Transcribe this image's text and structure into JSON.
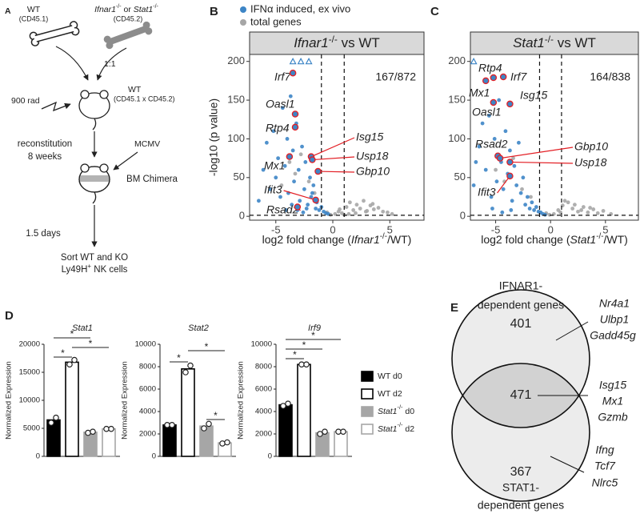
{
  "panel_a": {
    "letter": "A",
    "donor_wt": "WT",
    "donor_wt_marker": "(CD45.1)",
    "donor_ko_gene1": "Ifnar1",
    "ko_sup": "-/-",
    "or": " or ",
    "donor_ko_gene2": "Stat1",
    "donor_ko_marker": "(CD45.2)",
    "ratio": "1:1",
    "irradiation": "900 rad",
    "recipient": "WT",
    "recipient_marker": "(CD45.1 x CD45.2)",
    "reconstitution": "reconstitution",
    "weeks": "8 weeks",
    "infection": "MCMV",
    "chimera": "BM Chimera",
    "days": "1.5 days",
    "sort_1": "Sort WT and KO",
    "sort_2": "Ly49H",
    "sort_2_sup": "+",
    "sort_2_rest": " NK cells"
  },
  "chart_data": [
    {
      "type": "scatter",
      "letter": "B",
      "title": {
        "gene": "Ifnar1",
        "sup": "-/-",
        "rest": " vs WT"
      },
      "xlabel": {
        "pre": "log2 fold change (",
        "gene": "Ifnar1",
        "sup": "-/-",
        "post": "/WT)"
      },
      "ylabel": "-log10 (p value)",
      "count": "167/872",
      "highlight_color": "#e31e24",
      "xlim": [
        -7.3,
        8.0
      ],
      "ylim": [
        -5,
        209
      ],
      "xticks": [
        -5,
        0,
        5
      ],
      "yticks": [
        0,
        50,
        100,
        150,
        200
      ],
      "thresholds": {
        "x": [
          -1,
          1
        ],
        "y": [
          1.3
        ]
      },
      "series": [
        {
          "name": "IFNα induced, ex vivo",
          "color": "#3d85c6",
          "x": [
            -6.5,
            -6.1,
            -5.8,
            -5.5,
            -5.2,
            -5.0,
            -4.8,
            -4.6,
            -4.4,
            -4.2,
            -4.0,
            -3.9,
            -3.7,
            -3.5,
            -3.4,
            -3.2,
            -3.0,
            -2.9,
            -2.7,
            -2.5,
            -2.4,
            -2.2,
            -2.0,
            -1.9,
            -1.7,
            -1.5,
            -1.4,
            -1.2,
            -1.0,
            -0.8,
            -0.6,
            -0.4,
            -3.6,
            -3.1,
            -2.6,
            -2.3,
            -4.1,
            -1.8
          ],
          "y": [
            20,
            60,
            95,
            35,
            110,
            50,
            75,
            25,
            140,
            65,
            100,
            30,
            155,
            85,
            45,
            120,
            60,
            20,
            90,
            35,
            70,
            15,
            50,
            25,
            40,
            10,
            18,
            8,
            12,
            6,
            4,
            3,
            15,
            8,
            5,
            10,
            8,
            30
          ]
        },
        {
          "name": "total genes",
          "color": "#a6a6a6",
          "x": [
            -4.5,
            -3.8,
            -3.3,
            -2.8,
            -2.1,
            -1.6,
            -0.5,
            0.2,
            0.5,
            0.8,
            1.2,
            1.5,
            1.8,
            2.1,
            2.4,
            2.7,
            3.0,
            3.3,
            3.6,
            4.0,
            4.4,
            4.8,
            5.2,
            1.0,
            2.0,
            3.5,
            -0.2,
            0.6,
            1.4,
            2.9
          ],
          "y": [
            40,
            70,
            55,
            80,
            45,
            30,
            5,
            3,
            6,
            4,
            12,
            18,
            8,
            15,
            10,
            20,
            7,
            14,
            9,
            11,
            6,
            5,
            3,
            2,
            4,
            16,
            2,
            9,
            3,
            6
          ]
        }
      ],
      "capped": {
        "x": [
          -3.5,
          -2.8,
          -2.1
        ],
        "y": [
          200,
          200,
          200
        ]
      },
      "highlights": [
        {
          "label": "Irf7",
          "x": -3.5,
          "y": 185
        },
        {
          "label": "Oasl1",
          "x": -3.3,
          "y": 132
        },
        {
          "label": "Rtp4",
          "x": -3.3,
          "y": 115
        },
        {
          "label": "Mx1",
          "x": -3.8,
          "y": 77
        },
        {
          "label": "Isg15",
          "x": -1.9,
          "y": 77
        },
        {
          "label": "Usp18",
          "x": -1.8,
          "y": 73
        },
        {
          "label": "Gbp10",
          "x": -1.3,
          "y": 58
        },
        {
          "label": "Ifit3",
          "x": -1.5,
          "y": 21
        },
        {
          "label": "Rsad2",
          "x": -3.1,
          "y": 12
        }
      ]
    },
    {
      "type": "scatter",
      "letter": "C",
      "title": {
        "gene": "Stat1",
        "sup": "-/-",
        "rest": " vs WT"
      },
      "xlabel": {
        "pre": "log2 fold change (",
        "gene": "Stat1",
        "sup": "-/-",
        "post": "/WT)"
      },
      "count": "164/838",
      "highlight_color": "#e31e24",
      "xlim": [
        -7.3,
        8.0
      ],
      "ylim": [
        -5,
        209
      ],
      "xticks": [
        -5,
        0,
        5
      ],
      "yticks": [
        0,
        50,
        100,
        150,
        200
      ],
      "thresholds": {
        "x": [
          -1,
          1
        ],
        "y": [
          1.3
        ]
      },
      "series": [
        {
          "color": "#3d85c6",
          "x": [
            -7.0,
            -6.5,
            -6.2,
            -5.9,
            -5.6,
            -5.4,
            -5.1,
            -4.9,
            -4.7,
            -4.5,
            -4.3,
            -4.1,
            -3.9,
            -3.7,
            -3.5,
            -3.3,
            -3.1,
            -2.9,
            -2.7,
            -2.5,
            -2.3,
            -2.1,
            -1.9,
            -1.7,
            -1.5,
            -1.3,
            -1.1,
            -0.9,
            -0.7,
            -0.5,
            -6.8,
            -5.3,
            -4.4,
            -3.6
          ],
          "y": [
            40,
            90,
            120,
            60,
            130,
            25,
            100,
            45,
            150,
            70,
            35,
            110,
            55,
            85,
            20,
            65,
            40,
            95,
            30,
            50,
            15,
            25,
            10,
            18,
            8,
            12,
            6,
            5,
            3,
            2,
            70,
            10,
            5,
            8
          ]
        },
        {
          "color": "#a6a6a6",
          "x": [
            -5.0,
            -4.2,
            -3.4,
            -2.6,
            -1.8,
            -0.4,
            0.3,
            0.7,
            1.1,
            1.6,
            2.0,
            2.5,
            3.0,
            3.4,
            3.9,
            4.3,
            4.8,
            5.5,
            1.3,
            2.2,
            -0.1,
            0.9,
            2.8,
            3.6
          ],
          "y": [
            60,
            45,
            75,
            35,
            25,
            4,
            3,
            8,
            14,
            18,
            10,
            6,
            12,
            5,
            9,
            4,
            7,
            3,
            20,
            15,
            2,
            5,
            8,
            11
          ]
        }
      ],
      "capped": {
        "x": [
          -7.0
        ],
        "y": [
          200
        ]
      },
      "highlights": [
        {
          "label": "Rtp4",
          "x": -5.2,
          "y": 179
        },
        {
          "label": "Mx1",
          "x": -5.9,
          "y": 175
        },
        {
          "label": "Irf7",
          "x": -4.3,
          "y": 180
        },
        {
          "label": "Isg15",
          "x": -3.7,
          "y": 145
        },
        {
          "label": "Oasl1",
          "x": -5.2,
          "y": 147
        },
        {
          "label": "Rsad2",
          "x": -4.8,
          "y": 78
        },
        {
          "label": "Gbp10",
          "x": -4.6,
          "y": 75
        },
        {
          "label": "Usp18",
          "x": -3.7,
          "y": 70
        },
        {
          "label": "Ifit3",
          "x": -3.7,
          "y": 52
        }
      ]
    },
    {
      "type": "bar",
      "title": "Stat1",
      "ylabel": "Normalized Expression",
      "significance": "*",
      "values": [
        6500,
        16800,
        4300,
        4900
      ],
      "points": [
        [
          6000,
          6900
        ],
        [
          16400,
          17200
        ],
        [
          4200,
          4400
        ],
        [
          4900,
          4900
        ]
      ],
      "ylim": [
        0,
        20000
      ],
      "yticks": [
        0,
        5000,
        10000,
        15000,
        20000
      ]
    },
    {
      "type": "bar",
      "title": "Stat2",
      "ylabel": "Normalized Expression",
      "significance": "*",
      "values": [
        2800,
        7800,
        2700,
        1200
      ],
      "points": [
        [
          2800,
          2800
        ],
        [
          7500,
          8100
        ],
        [
          2500,
          2900
        ],
        [
          1150,
          1250
        ]
      ],
      "ylim": [
        0,
        10000
      ],
      "yticks": [
        0,
        2000,
        4000,
        6000,
        8000,
        10000
      ]
    },
    {
      "type": "bar",
      "title": "Irf9",
      "ylabel": "Normalized Expression",
      "significance": "*",
      "values": [
        4600,
        8200,
        2100,
        2200
      ],
      "points": [
        [
          4500,
          4700
        ],
        [
          8200,
          8200
        ],
        [
          2000,
          2200
        ],
        [
          2200,
          2200
        ]
      ],
      "ylim": [
        0,
        10000
      ],
      "yticks": [
        0,
        2000,
        4000,
        6000,
        8000,
        10000
      ]
    }
  ],
  "panel_d": {
    "letter": "D",
    "legend": [
      {
        "name": "WT d0",
        "fill": "#000000",
        "stroke": "#000000"
      },
      {
        "name": "WT d2",
        "fill": "#ffffff",
        "stroke": "#000000"
      },
      {
        "gene": "Stat1",
        "sup": "-/-",
        "rest": " d0",
        "fill": "#a6a6a6",
        "stroke": "#a6a6a6"
      },
      {
        "gene": "Stat1",
        "sup": "-/-",
        "rest": " d2",
        "fill": "#ffffff",
        "stroke": "#a6a6a6"
      }
    ]
  },
  "panel_e": {
    "letter": "E",
    "top_label": [
      "IFNAR1-",
      "dependent genes"
    ],
    "bottom_label": [
      "STAT1-",
      "dependent genes"
    ],
    "top_only": 401,
    "both": 471,
    "bottom_only": 367,
    "top_genes": [
      "Nr4a1",
      "Ulbp1",
      "Gadd45g"
    ],
    "both_genes": [
      "Isg15",
      "Mx1",
      "Gzmb"
    ],
    "bottom_genes": [
      "Ifng",
      "Tcf7",
      "Nlrc5"
    ]
  }
}
